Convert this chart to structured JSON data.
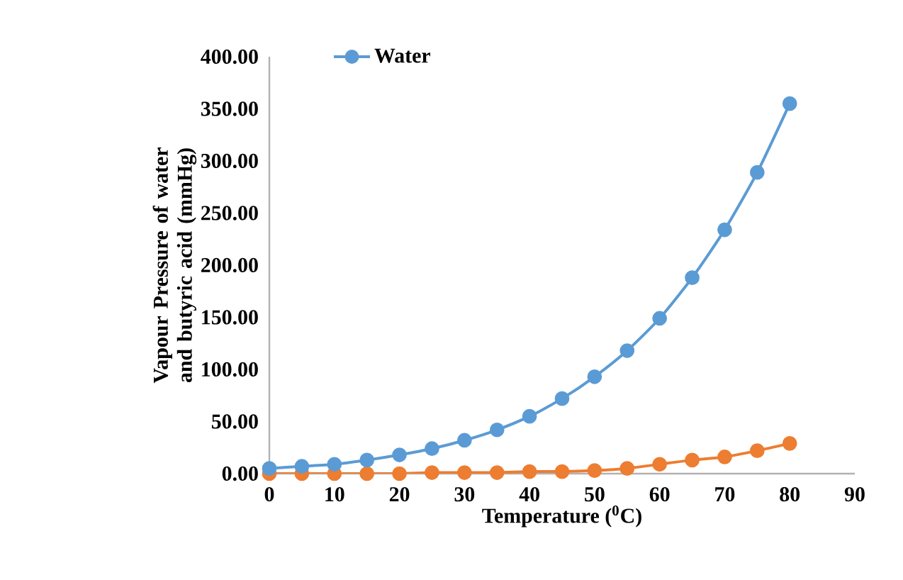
{
  "chart_data": {
    "type": "line",
    "xlabel": "Temperature ($^{0}$C)",
    "ylabel": "Vapour Pressure of water and butyric acid (mmHg)",
    "x": [
      0,
      5,
      10,
      15,
      20,
      25,
      30,
      35,
      40,
      45,
      50,
      55,
      60,
      65,
      70,
      75,
      80
    ],
    "series": [
      {
        "name": "Water",
        "color": "#5b9bd5",
        "values": [
          5,
          7,
          9,
          13,
          18,
          24,
          32,
          42,
          55,
          72,
          93,
          118,
          149,
          188,
          234,
          289,
          355
        ]
      },
      {
        "color": "#ed7d31",
        "values": [
          0,
          0,
          0,
          0,
          0,
          1,
          1,
          1,
          2,
          2,
          3,
          5,
          9,
          13,
          16,
          22,
          29
        ]
      }
    ],
    "xlim": [
      0,
      90
    ],
    "xticks": [
      0,
      10,
      20,
      30,
      40,
      50,
      60,
      70,
      80,
      90
    ],
    "ylim": [
      0,
      400
    ],
    "yticks": [
      {
        "value": 0,
        "label": "0.00"
      },
      {
        "value": 50,
        "label": "50.00"
      },
      {
        "value": 100,
        "label": "100.00"
      },
      {
        "value": 150,
        "label": "150.00"
      },
      {
        "value": 200,
        "label": "200.00"
      },
      {
        "value": 250,
        "label": "250.00"
      },
      {
        "value": 300,
        "label": "300.00"
      },
      {
        "value": 350,
        "label": "350.00"
      },
      {
        "value": 400,
        "label": "400.00"
      }
    ],
    "grid": false,
    "legend": "top left",
    "marker": "circle",
    "line_style": "solid"
  }
}
